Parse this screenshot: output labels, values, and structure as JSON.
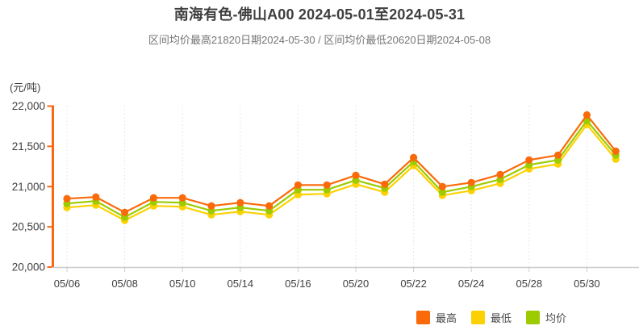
{
  "title": "南海有色-佛山A00 2024-05-01至2024-05-31",
  "subtitle": "区间均价最高21820日期2024-05-30 / 区间均价最低20620日期2024-05-08",
  "chart_data": {
    "type": "line",
    "title": "南海有色-佛山A00 2024-05-01至2024-05-31",
    "subtitle": "区间均价最高21820日期2024-05-30 / 区间均价最低20620日期2024-05-08",
    "ylabel": "(元/吨)",
    "xlabel": "",
    "x": [
      "05/06",
      "05/07",
      "05/08",
      "05/09",
      "05/10",
      "05/13",
      "05/14",
      "05/15",
      "05/16",
      "05/17",
      "05/20",
      "05/21",
      "05/22",
      "05/23",
      "05/24",
      "05/27",
      "05/28",
      "05/29",
      "05/30",
      "05/31"
    ],
    "x_tick_labels": [
      "05/06",
      "05/08",
      "05/10",
      "05/14",
      "05/16",
      "05/20",
      "05/22",
      "05/24",
      "05/28",
      "05/30"
    ],
    "series": [
      {
        "id": "high",
        "name": "最高",
        "color": "#fa6a0a",
        "values": [
          20850,
          20870,
          20680,
          20860,
          20860,
          20760,
          20800,
          20760,
          21020,
          21020,
          21140,
          21030,
          21360,
          21000,
          21050,
          21150,
          21330,
          21390,
          21890,
          21440
        ]
      },
      {
        "id": "low",
        "name": "最低",
        "color": "#fcd103",
        "values": [
          20740,
          20770,
          20580,
          20760,
          20750,
          20650,
          20690,
          20650,
          20900,
          20910,
          21030,
          20930,
          21260,
          20890,
          20950,
          21040,
          21220,
          21280,
          21770,
          21340
        ]
      },
      {
        "id": "avg",
        "name": "均价",
        "color": "#9ccb00",
        "values": [
          20790,
          20820,
          20620,
          20810,
          20800,
          20700,
          20740,
          20700,
          20960,
          20960,
          21080,
          20980,
          21310,
          20930,
          21000,
          21090,
          21270,
          21330,
          21820,
          21390
        ]
      }
    ],
    "ylim": [
      20000,
      22000
    ],
    "y_tick_step": 500,
    "y_tick_labels": [
      "22,000",
      "21,500",
      "21,000",
      "20,500",
      "20,000"
    ],
    "grid": "vertical-dotted",
    "legend_position": "bottom-right",
    "axis_colors": {
      "y_axis": "#f96713",
      "x_axis": "#cccccc",
      "gridline": "#e0e0e0",
      "tick_label": "#3f3f3f"
    }
  },
  "legend": {
    "items": [
      {
        "id": "high",
        "label": "最高",
        "color": "#fa6a0a"
      },
      {
        "id": "low",
        "label": "最低",
        "color": "#fcd103"
      },
      {
        "id": "avg",
        "label": "均价",
        "color": "#9ccb00"
      }
    ]
  }
}
